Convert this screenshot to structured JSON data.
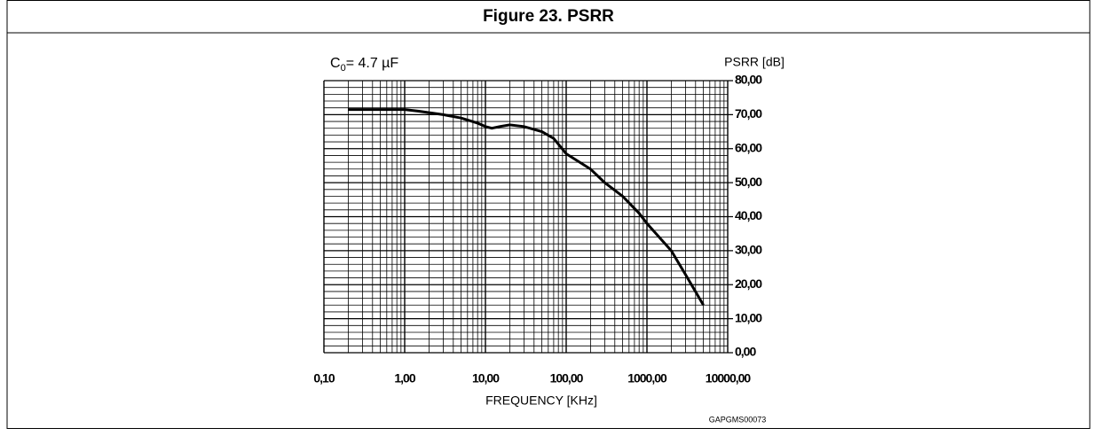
{
  "chart_data": {
    "type": "line",
    "title": "Figure 23. PSRR",
    "annotation": {
      "symbol": "C",
      "subscript": "0",
      "text": "= 4.7 µF"
    },
    "y_label": "PSRR [dB]",
    "x_label": "FREQUENCY [KHz]",
    "code": "GAPGMS00073",
    "x_log": true,
    "grid": true,
    "color": "#000000",
    "xlim": [
      0.1,
      10000
    ],
    "xticks": [
      {
        "value": 0.1,
        "label": "0,10"
      },
      {
        "value": 1,
        "label": "1,00"
      },
      {
        "value": 10,
        "label": "10,00"
      },
      {
        "value": 100,
        "label": "100,00"
      },
      {
        "value": 1000,
        "label": "1000,00"
      },
      {
        "value": 10000,
        "label": "10000,00"
      }
    ],
    "ylim": [
      0,
      80
    ],
    "yticks": [
      {
        "value": 0,
        "label": "0,00"
      },
      {
        "value": 10,
        "label": "10,00"
      },
      {
        "value": 20,
        "label": "20,00"
      },
      {
        "value": 30,
        "label": "30,00"
      },
      {
        "value": 40,
        "label": "40,00"
      },
      {
        "value": 50,
        "label": "50,00"
      },
      {
        "value": 60,
        "label": "60,00"
      },
      {
        "value": 70,
        "label": "70,00"
      },
      {
        "value": 80,
        "label": "80,00"
      }
    ],
    "x": [
      0.2,
      0.5,
      1,
      1.5,
      3,
      5,
      8,
      10,
      12,
      15,
      20,
      30,
      50,
      70,
      100,
      200,
      300,
      500,
      800,
      1000,
      2000,
      3000,
      5000
    ],
    "values": [
      71.5,
      71.5,
      71.5,
      71,
      70,
      69,
      67.5,
      66.5,
      66,
      66.5,
      67,
      66.5,
      65,
      63,
      58.5,
      54,
      50,
      46,
      41,
      38,
      30,
      23,
      14
    ]
  }
}
